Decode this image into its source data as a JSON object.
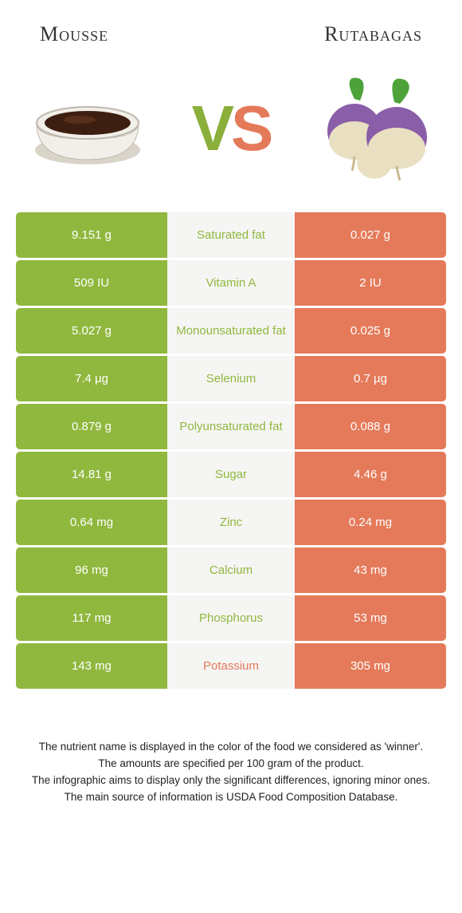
{
  "header": {
    "left_title": "Mousse",
    "right_title": "Rutabagas"
  },
  "vs": {
    "v": "V",
    "s": "S"
  },
  "colors": {
    "green": "#90b83e",
    "orange": "#e47a5a",
    "mid_bg": "#f5f5f3",
    "white": "#ffffff"
  },
  "table": {
    "rows": [
      {
        "nutrient": "Saturated fat",
        "left": "9.151 g",
        "right": "0.027 g",
        "winner": "left"
      },
      {
        "nutrient": "Vitamin A",
        "left": "509 IU",
        "right": "2 IU",
        "winner": "left"
      },
      {
        "nutrient": "Monounsaturated fat",
        "left": "5.027 g",
        "right": "0.025 g",
        "winner": "left"
      },
      {
        "nutrient": "Selenium",
        "left": "7.4 µg",
        "right": "0.7 µg",
        "winner": "left"
      },
      {
        "nutrient": "Polyunsaturated fat",
        "left": "0.879 g",
        "right": "0.088 g",
        "winner": "left"
      },
      {
        "nutrient": "Sugar",
        "left": "14.81 g",
        "right": "4.46 g",
        "winner": "left"
      },
      {
        "nutrient": "Zinc",
        "left": "0.64 mg",
        "right": "0.24 mg",
        "winner": "left"
      },
      {
        "nutrient": "Calcium",
        "left": "96 mg",
        "right": "43 mg",
        "winner": "left"
      },
      {
        "nutrient": "Phosphorus",
        "left": "117 mg",
        "right": "53 mg",
        "winner": "left"
      },
      {
        "nutrient": "Potassium",
        "left": "143 mg",
        "right": "305 mg",
        "winner": "right"
      }
    ]
  },
  "footnotes": [
    "The nutrient name is displayed in the color of the food we considered as 'winner'.",
    "The amounts are specified per 100 gram of the product.",
    "The infographic aims to display only the significant differences, ignoring minor ones.",
    "The main source of information is USDA Food Composition Database."
  ],
  "images": {
    "mousse": {
      "cup_fill": "#f2efe9",
      "cup_stroke": "#bfb9ad",
      "mousse_fill": "#3d1f12",
      "mousse_highlight": "#6b3a22"
    },
    "rutabaga": {
      "leaf": "#4da23a",
      "body_top": "#8a5ea8",
      "body_bottom": "#e9e0c2",
      "root": "#cbb98f"
    }
  }
}
